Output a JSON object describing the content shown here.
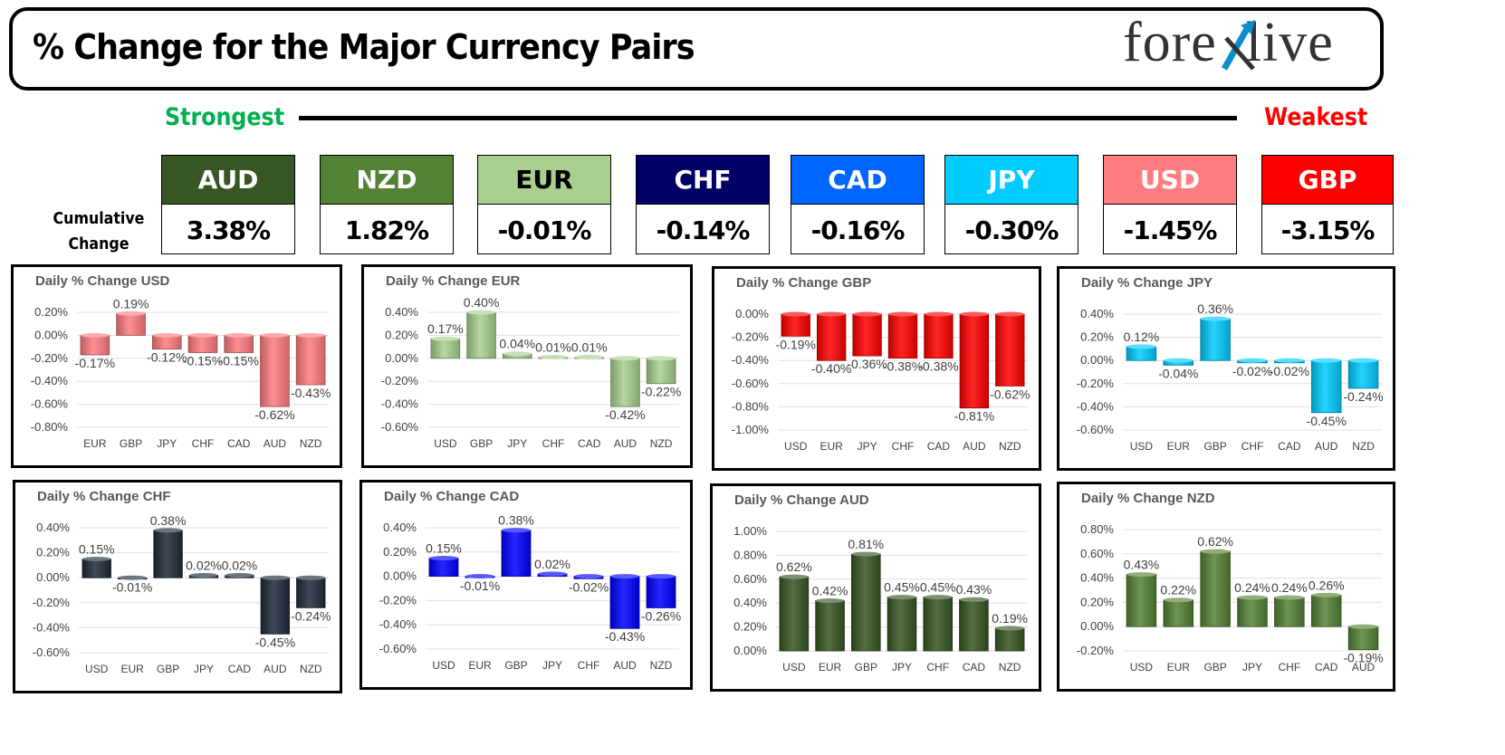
{
  "header": {
    "title": "% Change for the Major Currency Pairs",
    "logo_prefix": "fore",
    "logo_suffix": "live",
    "strongest": "Strongest",
    "weakest": "Weakest"
  },
  "cumulative": {
    "label_line1": "Cumulative",
    "label_line2": "Change",
    "items": [
      {
        "code": "AUD",
        "value": "3.38%",
        "color": "#375623",
        "dark": false
      },
      {
        "code": "NZD",
        "value": "1.82%",
        "color": "#548235",
        "dark": false
      },
      {
        "code": "EUR",
        "value": "-0.01%",
        "color": "#a9d08e",
        "dark": true
      },
      {
        "code": "CHF",
        "value": "-0.14%",
        "color": "#000066",
        "dark": false
      },
      {
        "code": "CAD",
        "value": "-0.16%",
        "color": "#0066ff",
        "dark": false
      },
      {
        "code": "JPY",
        "value": "-0.30%",
        "color": "#00ccff",
        "dark": false
      },
      {
        "code": "USD",
        "value": "-1.45%",
        "color": "#ff7c80",
        "dark": false
      },
      {
        "code": "GBP",
        "value": "-3.15%",
        "color": "#ff0000",
        "dark": false
      }
    ]
  },
  "chart_data": [
    {
      "type": "bar",
      "title": "Daily % Change USD",
      "color": "#ff7c80",
      "categories": [
        "EUR",
        "GBP",
        "JPY",
        "CHF",
        "CAD",
        "AUD",
        "NZD"
      ],
      "values": [
        -0.17,
        0.19,
        -0.12,
        -0.15,
        -0.15,
        -0.62,
        -0.43
      ],
      "ylim": [
        -0.8,
        0.2
      ],
      "yticks": [
        0.2,
        0.0,
        -0.2,
        -0.4,
        -0.6,
        -0.8
      ]
    },
    {
      "type": "bar",
      "title": "Daily % Change EUR",
      "color": "#a9d08e",
      "categories": [
        "USD",
        "GBP",
        "JPY",
        "CHF",
        "CAD",
        "AUD",
        "NZD"
      ],
      "values": [
        0.17,
        0.4,
        0.04,
        0.01,
        0.01,
        -0.42,
        -0.22
      ],
      "ylim": [
        -0.6,
        0.4
      ],
      "yticks": [
        0.4,
        0.2,
        0.0,
        -0.2,
        -0.4,
        -0.6
      ]
    },
    {
      "type": "bar",
      "title": "Daily % Change GBP",
      "color": "#ff0000",
      "categories": [
        "USD",
        "EUR",
        "JPY",
        "CHF",
        "CAD",
        "AUD",
        "NZD"
      ],
      "values": [
        -0.19,
        -0.4,
        -0.36,
        -0.38,
        -0.38,
        -0.81,
        -0.62
      ],
      "ylim": [
        -1.0,
        0.0
      ],
      "yticks": [
        0.0,
        -0.2,
        -0.4,
        -0.6,
        -0.8,
        -1.0
      ]
    },
    {
      "type": "bar",
      "title": "Daily % Change JPY",
      "color": "#00ccff",
      "categories": [
        "USD",
        "EUR",
        "GBP",
        "CHF",
        "CAD",
        "AUD",
        "NZD"
      ],
      "values": [
        0.12,
        -0.04,
        0.36,
        -0.02,
        -0.02,
        -0.45,
        -0.24
      ],
      "ylim": [
        -0.6,
        0.4
      ],
      "yticks": [
        0.4,
        0.2,
        0.0,
        -0.2,
        -0.4,
        -0.6
      ]
    },
    {
      "type": "bar",
      "title": "Daily % Change CHF",
      "color": "#1f2a3a",
      "categories": [
        "USD",
        "EUR",
        "GBP",
        "JPY",
        "CAD",
        "AUD",
        "NZD"
      ],
      "values": [
        0.15,
        -0.01,
        0.38,
        0.02,
        0.02,
        -0.45,
        -0.24
      ],
      "ylim": [
        -0.6,
        0.4
      ],
      "yticks": [
        0.4,
        0.2,
        0.0,
        -0.2,
        -0.4,
        -0.6
      ]
    },
    {
      "type": "bar",
      "title": "Daily % Change CAD",
      "color": "#0000ff",
      "categories": [
        "USD",
        "EUR",
        "GBP",
        "JPY",
        "CHF",
        "AUD",
        "NZD"
      ],
      "values": [
        0.15,
        -0.01,
        0.38,
        0.02,
        -0.02,
        -0.43,
        -0.26
      ],
      "ylim": [
        -0.6,
        0.4
      ],
      "yticks": [
        0.4,
        0.2,
        0.0,
        -0.2,
        -0.4,
        -0.6
      ]
    },
    {
      "type": "bar",
      "title": "Daily % Change AUD",
      "color": "#375623",
      "categories": [
        "USD",
        "EUR",
        "GBP",
        "JPY",
        "CHF",
        "CAD",
        "NZD"
      ],
      "values": [
        0.62,
        0.42,
        0.81,
        0.45,
        0.45,
        0.43,
        0.19
      ],
      "ylim": [
        0.0,
        1.0
      ],
      "yticks": [
        1.0,
        0.8,
        0.6,
        0.4,
        0.2,
        0.0
      ]
    },
    {
      "type": "bar",
      "title": "Daily % Change NZD",
      "color": "#548235",
      "categories": [
        "USD",
        "EUR",
        "GBP",
        "JPY",
        "CHF",
        "CAD",
        "AUD"
      ],
      "values": [
        0.43,
        0.22,
        0.62,
        0.24,
        0.24,
        0.26,
        -0.19
      ],
      "ylim": [
        -0.2,
        0.8
      ],
      "yticks": [
        0.8,
        0.6,
        0.4,
        0.2,
        0.0,
        -0.2
      ]
    }
  ]
}
